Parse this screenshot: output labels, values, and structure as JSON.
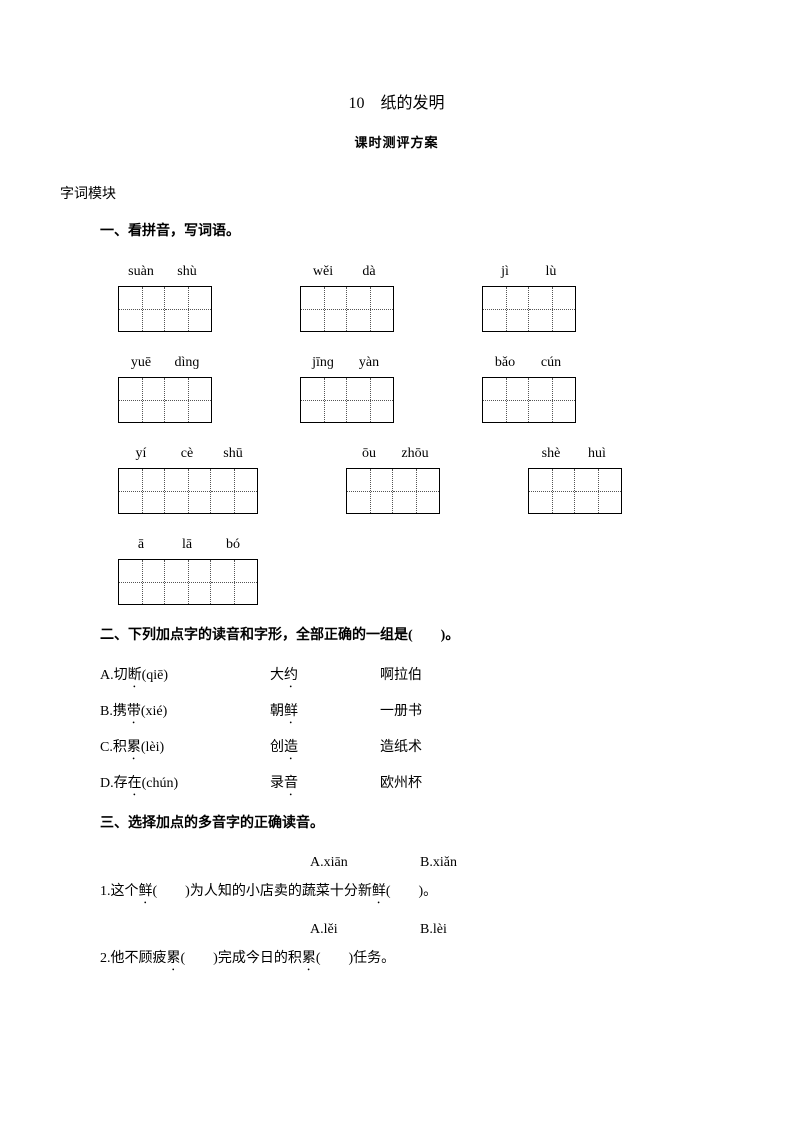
{
  "title": "10　纸的发明",
  "subtitle": "课时测评方案",
  "section_label": "字词模块",
  "q1": {
    "heading": "一、看拼音，写词语。",
    "rows": [
      [
        {
          "syllables": [
            "suàn",
            "shù"
          ],
          "cells": 2
        },
        {
          "syllables": [
            "wěi",
            "dà"
          ],
          "cells": 2
        },
        {
          "syllables": [
            "jì",
            "lù"
          ],
          "cells": 2
        }
      ],
      [
        {
          "syllables": [
            "yuē",
            "dìnɡ"
          ],
          "cells": 2
        },
        {
          "syllables": [
            "jīnɡ",
            "yàn"
          ],
          "cells": 2
        },
        {
          "syllables": [
            "bǎo",
            "cún"
          ],
          "cells": 2
        }
      ],
      [
        {
          "syllables": [
            "yí",
            "cè",
            "shū"
          ],
          "cells": 3
        },
        {
          "syllables": [
            "ōu",
            "zhōu"
          ],
          "cells": 2
        },
        {
          "syllables": [
            "shè",
            "huì"
          ],
          "cells": 2
        }
      ],
      [
        {
          "syllables": [
            "ā",
            "lā",
            "bó"
          ],
          "cells": 3
        }
      ]
    ]
  },
  "q2": {
    "heading_pre": "二、下列加点字的读音和字形，全部正确的一组是(",
    "heading_post": ")。",
    "choices": [
      {
        "letter": "A.",
        "w1_pre": "切",
        "w1_dot": "断",
        "py": "(qiē)",
        "w2_pre": "大",
        "w2_dot": "约",
        "w3": "啊拉伯"
      },
      {
        "letter": "B.",
        "w1_pre": "携",
        "w1_dot": "带",
        "py": "(xié)",
        "w2_pre": "朝",
        "w2_dot": "鲜",
        "w3": "一册书"
      },
      {
        "letter": "C.",
        "w1_pre": "积",
        "w1_dot": "累",
        "py": "(lèi)",
        "w2_pre": "创",
        "w2_dot": "造",
        "w3": "造纸术"
      },
      {
        "letter": "D.",
        "w1_pre": "存",
        "w1_dot": "在",
        "py": "(chún)",
        "w2_pre": "录",
        "w2_dot": "音",
        "w3": "欧州杯"
      }
    ]
  },
  "q3": {
    "heading": "三、选择加点的多音字的正确读音。",
    "items": [
      {
        "opt_a": "A.xiān",
        "opt_b": "B.xiǎn",
        "num": "1.",
        "seg1": "这个",
        "dot1": "鲜",
        "seg2": "(　　)为人知的小店卖的蔬菜十分新",
        "dot2": "鲜",
        "seg3": "(　　)。"
      },
      {
        "opt_a": "A.lěi",
        "opt_b": "B.lèi",
        "num": "2.",
        "seg1": "他不顾疲",
        "dot1": "累",
        "seg2": "(　　)完成今日的积",
        "dot2": "累",
        "seg3": "(　　)任务。"
      }
    ]
  },
  "colors": {
    "text": "#000000",
    "bg": "#ffffff",
    "dotted": "#555555"
  }
}
